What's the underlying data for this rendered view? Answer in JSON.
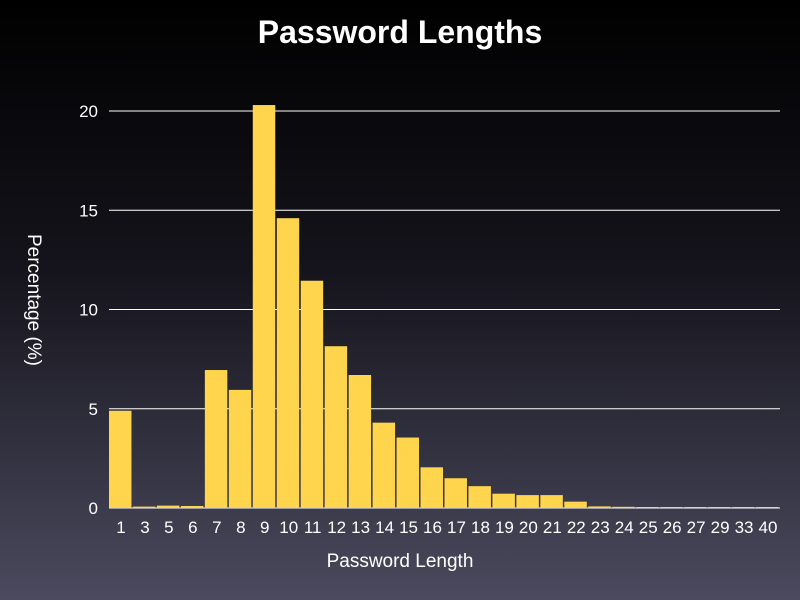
{
  "chart_data": {
    "type": "bar",
    "title": "Password Lengths",
    "xlabel": "Password Length",
    "ylabel": "Percentage (%)",
    "ylim": [
      0,
      22
    ],
    "yticks": [
      "0",
      "5",
      "10",
      "15",
      "20"
    ],
    "grid": true,
    "bar_color": "#ffd54d",
    "grid_color": "#ffffff",
    "categories": [
      "1",
      "3",
      "5",
      "6",
      "7",
      "8",
      "9",
      "10",
      "11",
      "12",
      "13",
      "14",
      "15",
      "16",
      "17",
      "18",
      "19",
      "20",
      "21",
      "22",
      "23",
      "24",
      "25",
      "26",
      "27",
      "29",
      "33",
      "40"
    ],
    "values": [
      4.9,
      0.07,
      0.12,
      0.1,
      6.95,
      5.95,
      20.3,
      14.6,
      11.45,
      8.15,
      6.7,
      4.3,
      3.55,
      2.05,
      1.5,
      1.1,
      0.72,
      0.65,
      0.65,
      0.32,
      0.08,
      0.06,
      0.05,
      0.04,
      0.04,
      0.04,
      0.04,
      0.04
    ]
  }
}
